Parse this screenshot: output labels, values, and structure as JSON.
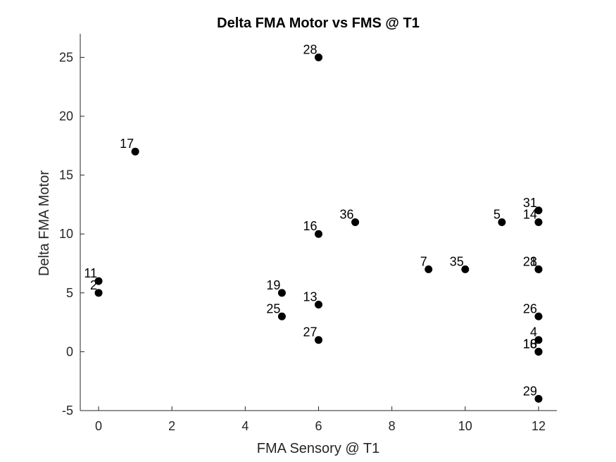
{
  "chart_data": {
    "type": "scatter",
    "title": "Delta FMA Motor vs FMS @ T1",
    "xlabel": "FMA Sensory @ T1",
    "ylabel": "Delta FMA Motor",
    "xlim": [
      -0.5,
      12.5
    ],
    "ylim": [
      -5,
      27
    ],
    "xticks": [
      0,
      2,
      4,
      6,
      8,
      10,
      12
    ],
    "yticks": [
      -5,
      0,
      5,
      10,
      15,
      20,
      25
    ],
    "grid": false,
    "marker_color": "#000000",
    "points": [
      {
        "x": 6,
        "y": 25,
        "label": "28"
      },
      {
        "x": 1,
        "y": 17,
        "label": "17"
      },
      {
        "x": 12,
        "y": 12,
        "label": "31"
      },
      {
        "x": 12,
        "y": 11,
        "label": "14"
      },
      {
        "x": 11,
        "y": 11,
        "label": "5"
      },
      {
        "x": 7,
        "y": 11,
        "label": "36"
      },
      {
        "x": 6,
        "y": 10,
        "label": "16"
      },
      {
        "x": 0,
        "y": 6,
        "label": "11"
      },
      {
        "x": 0,
        "y": 5,
        "label": "2"
      },
      {
        "x": 9,
        "y": 7,
        "label": "7"
      },
      {
        "x": 10,
        "y": 7,
        "label": "35"
      },
      {
        "x": 12,
        "y": 7,
        "label": "28"
      },
      {
        "x": 12,
        "y": 7,
        "label": "1"
      },
      {
        "x": 5,
        "y": 5,
        "label": "19"
      },
      {
        "x": 6,
        "y": 4,
        "label": "13"
      },
      {
        "x": 5,
        "y": 3,
        "label": "25"
      },
      {
        "x": 12,
        "y": 3,
        "label": "26"
      },
      {
        "x": 6,
        "y": 1,
        "label": "27"
      },
      {
        "x": 12,
        "y": 1,
        "label": "4"
      },
      {
        "x": 12,
        "y": 0,
        "label": "3"
      },
      {
        "x": 12,
        "y": 0,
        "label": "10"
      },
      {
        "x": 12,
        "y": 0,
        "label": "18"
      },
      {
        "x": 12,
        "y": -4,
        "label": "29"
      }
    ]
  }
}
